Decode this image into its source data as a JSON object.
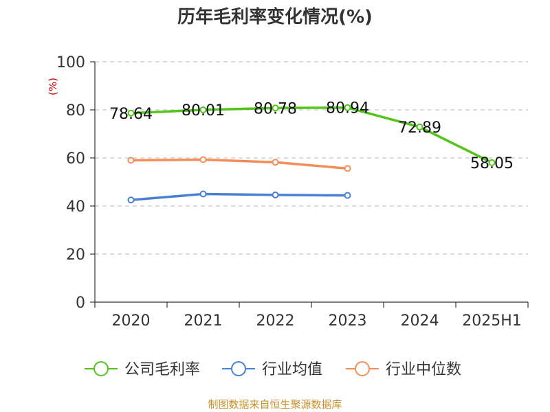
{
  "chart_data": {
    "type": "line",
    "title": "历年毛利率变化情况(%)",
    "ylabel": "(%)",
    "categories": [
      "2020",
      "2021",
      "2022",
      "2023",
      "2024",
      "2025H1"
    ],
    "ylim": [
      0,
      100
    ],
    "yticks": [
      "0",
      "20",
      "40",
      "60",
      "80",
      "100"
    ],
    "grid": true,
    "legend_position": "bottom",
    "series": [
      {
        "name": "公司毛利率",
        "color": "#52c41a",
        "values": [
          78.64,
          80.01,
          80.78,
          80.94,
          72.89,
          58.05
        ],
        "labels": [
          "78.64",
          "80.01",
          "80.78",
          "80.94",
          "72.89",
          "58.05"
        ]
      },
      {
        "name": "行业均值",
        "color": "#4a7fd6",
        "values": [
          42.5,
          45.0,
          44.6,
          44.4,
          null,
          null
        ]
      },
      {
        "name": "行业中位数",
        "color": "#f58d5a",
        "values": [
          59.0,
          59.3,
          58.2,
          55.6,
          null,
          null
        ]
      }
    ]
  },
  "source_note": "制图数据来自恒生聚源数据库"
}
